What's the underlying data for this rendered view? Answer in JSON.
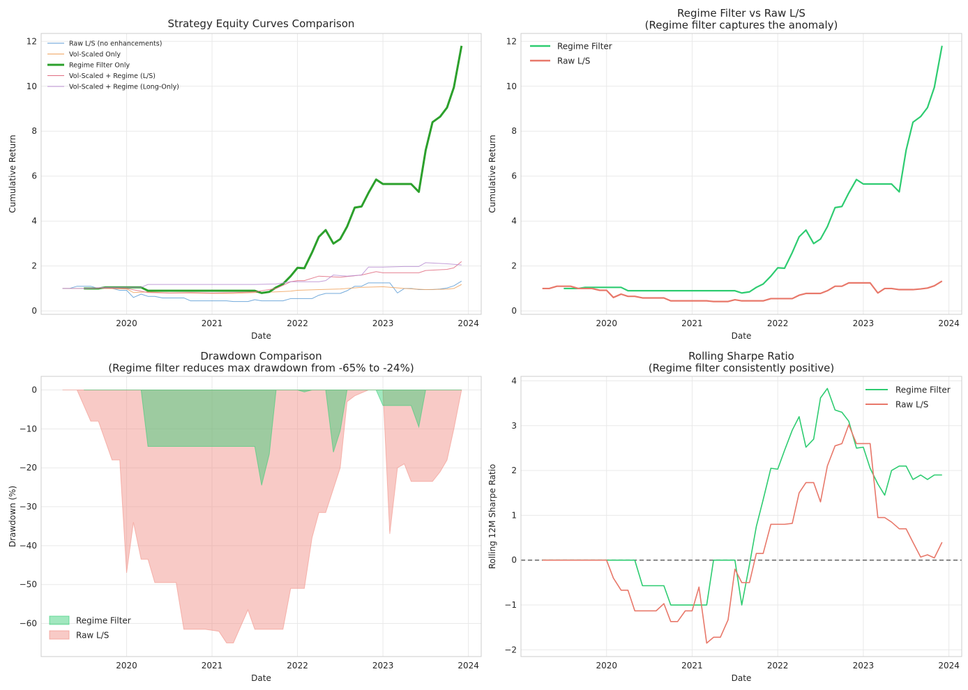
{
  "chart_data": [
    {
      "type": "line",
      "title": "Strategy Equity Curves Comparison",
      "xlabel": "Date",
      "ylabel": "Cumulative Return",
      "xlim": [
        2019.0,
        2024.15
      ],
      "ylim": [
        -0.15,
        12.35
      ],
      "xticks": [
        2020,
        2021,
        2022,
        2023,
        2024
      ],
      "yticks": [
        0,
        2,
        4,
        6,
        8,
        10,
        12
      ],
      "grid": true,
      "legend": "top-left",
      "series": [
        {
          "name": "Raw L/S (no enhancements)",
          "color": "#5b9bd5",
          "width": 1,
          "x": [
            2019.25,
            2019.33,
            2019.42,
            2019.5,
            2019.58,
            2019.67,
            2019.75,
            2019.83,
            2019.92,
            2020.0,
            2020.08,
            2020.17,
            2020.25,
            2020.33,
            2020.42,
            2020.5,
            2020.58,
            2020.67,
            2020.75,
            2020.83,
            2020.92,
            2021.0,
            2021.08,
            2021.17,
            2021.25,
            2021.33,
            2021.42,
            2021.5,
            2021.58,
            2021.67,
            2021.75,
            2021.83,
            2021.92,
            2022.0,
            2022.08,
            2022.17,
            2022.25,
            2022.33,
            2022.42,
            2022.5,
            2022.58,
            2022.67,
            2022.75,
            2022.83,
            2022.92,
            2023.0,
            2023.08,
            2023.17,
            2023.25,
            2023.33,
            2023.42,
            2023.5,
            2023.58,
            2023.67,
            2023.75,
            2023.83,
            2023.92
          ],
          "y": [
            1.0,
            1.0,
            1.1,
            1.1,
            1.1,
            1.0,
            1.0,
            1.0,
            0.92,
            0.92,
            0.6,
            0.75,
            0.65,
            0.65,
            0.58,
            0.58,
            0.58,
            0.58,
            0.45,
            0.45,
            0.45,
            0.45,
            0.45,
            0.45,
            0.42,
            0.42,
            0.42,
            0.5,
            0.45,
            0.45,
            0.45,
            0.45,
            0.55,
            0.55,
            0.55,
            0.55,
            0.7,
            0.78,
            0.78,
            0.78,
            0.9,
            1.1,
            1.1,
            1.25,
            1.25,
            1.25,
            1.25,
            0.8,
            1.0,
            1.0,
            0.95,
            0.95,
            0.95,
            0.98,
            1.02,
            1.12,
            1.33
          ]
        },
        {
          "name": "Vol-Scaled Only",
          "color": "#f0a35e",
          "width": 1,
          "x": [
            2019.25,
            2019.5,
            2019.75,
            2020.0,
            2020.08,
            2020.25,
            2020.5,
            2020.75,
            2021.0,
            2021.25,
            2021.5,
            2021.75,
            2021.92,
            2022.0,
            2022.25,
            2022.5,
            2022.75,
            2023.0,
            2023.25,
            2023.5,
            2023.75,
            2023.83,
            2023.92
          ],
          "y": [
            1.0,
            1.0,
            1.0,
            0.98,
            0.82,
            0.85,
            0.8,
            0.8,
            0.78,
            0.78,
            0.82,
            0.85,
            0.88,
            0.92,
            0.95,
            0.98,
            1.05,
            1.08,
            1.0,
            0.95,
            0.97,
            1.0,
            1.18
          ]
        },
        {
          "name": "Regime Filter Only",
          "color": "#2ca02c",
          "width": 3,
          "x": [
            2019.5,
            2019.58,
            2019.67,
            2019.75,
            2019.83,
            2019.92,
            2020.0,
            2020.08,
            2020.17,
            2020.25,
            2020.33,
            2020.42,
            2020.5,
            2020.58,
            2020.67,
            2020.75,
            2020.83,
            2020.92,
            2021.0,
            2021.08,
            2021.17,
            2021.25,
            2021.33,
            2021.42,
            2021.5,
            2021.58,
            2021.67,
            2021.75,
            2021.83,
            2021.92,
            2022.0,
            2022.08,
            2022.17,
            2022.25,
            2022.33,
            2022.42,
            2022.5,
            2022.58,
            2022.67,
            2022.75,
            2022.83,
            2022.92,
            2023.0,
            2023.08,
            2023.17,
            2023.25,
            2023.33,
            2023.42,
            2023.5,
            2023.58,
            2023.67,
            2023.75,
            2023.83,
            2023.92
          ],
          "y": [
            1.0,
            1.0,
            1.0,
            1.05,
            1.05,
            1.05,
            1.05,
            1.05,
            1.05,
            0.9,
            0.9,
            0.9,
            0.9,
            0.9,
            0.9,
            0.9,
            0.9,
            0.9,
            0.9,
            0.9,
            0.9,
            0.9,
            0.9,
            0.9,
            0.9,
            0.8,
            0.85,
            1.05,
            1.2,
            1.55,
            1.92,
            1.9,
            2.6,
            3.3,
            3.6,
            3.0,
            3.2,
            3.75,
            4.6,
            4.65,
            5.25,
            5.85,
            5.65,
            5.65,
            5.65,
            5.65,
            5.65,
            5.3,
            7.15,
            8.4,
            8.65,
            9.05,
            9.95,
            11.8
          ]
        },
        {
          "name": "Vol-Scaled + Regime (L/S)",
          "color": "#e06c80",
          "width": 1,
          "x": [
            2019.5,
            2019.75,
            2020.0,
            2020.25,
            2020.5,
            2020.75,
            2021.0,
            2021.25,
            2021.5,
            2021.75,
            2021.92,
            2022.0,
            2022.08,
            2022.25,
            2022.5,
            2022.75,
            2022.92,
            2023.0,
            2023.25,
            2023.42,
            2023.5,
            2023.75,
            2023.83,
            2023.92
          ],
          "y": [
            1.0,
            1.02,
            1.0,
            0.82,
            0.8,
            0.82,
            0.8,
            0.82,
            0.85,
            1.0,
            1.3,
            1.35,
            1.35,
            1.55,
            1.5,
            1.6,
            1.75,
            1.7,
            1.7,
            1.7,
            1.8,
            1.85,
            1.92,
            2.2
          ]
        },
        {
          "name": "Vol-Scaled + Regime (Long-Only)",
          "color": "#b98ed2",
          "width": 1,
          "x": [
            2019.25,
            2019.5,
            2019.75,
            2020.0,
            2020.17,
            2020.25,
            2020.5,
            2020.75,
            2021.0,
            2021.25,
            2021.5,
            2021.75,
            2021.92,
            2022.0,
            2022.25,
            2022.33,
            2022.42,
            2022.58,
            2022.75,
            2022.83,
            2023.0,
            2023.25,
            2023.42,
            2023.5,
            2023.75,
            2023.92
          ],
          "y": [
            1.0,
            1.0,
            1.05,
            1.05,
            1.05,
            1.18,
            1.18,
            1.18,
            1.18,
            1.18,
            1.18,
            1.2,
            1.3,
            1.3,
            1.3,
            1.35,
            1.6,
            1.55,
            1.6,
            1.95,
            1.95,
            1.98,
            1.98,
            2.15,
            2.1,
            2.05
          ]
        }
      ]
    },
    {
      "type": "line",
      "title": "Regime Filter vs Raw L/S",
      "subtitle": "(Regime filter captures the anomaly)",
      "xlabel": "Date",
      "ylabel": "Cumulative Return",
      "xlim": [
        2019.0,
        2024.15
      ],
      "ylim": [
        -0.15,
        12.35
      ],
      "xticks": [
        2020,
        2021,
        2022,
        2023,
        2024
      ],
      "yticks": [
        0,
        2,
        4,
        6,
        8,
        10,
        12
      ],
      "grid": true,
      "legend": "top-left",
      "series": [
        {
          "name": "Regime Filter",
          "color": "#2ecc71",
          "width": 2.2,
          "ref": "regime"
        },
        {
          "name": "Raw L/S",
          "color": "#e8786a",
          "width": 2.2,
          "ref": "raw"
        }
      ]
    },
    {
      "type": "area",
      "title": "Drawdown Comparison",
      "subtitle": "(Regime filter reduces max drawdown from -65% to -24%)",
      "xlabel": "Date",
      "ylabel": "Drawdown (%)",
      "xlim": [
        2019.0,
        2024.15
      ],
      "ylim": [
        -68.5,
        3.5
      ],
      "xticks": [
        2020,
        2021,
        2022,
        2023,
        2024
      ],
      "yticks": [
        0,
        -10,
        -20,
        -30,
        -40,
        -50,
        -60
      ],
      "grid": true,
      "legend": "bottom-left",
      "series": [
        {
          "name": "Regime Filter",
          "color": "#2ecc71",
          "x": [
            2019.5,
            2020.17,
            2020.25,
            2021.5,
            2021.58,
            2021.67,
            2021.75,
            2021.92,
            2022.0,
            2022.08,
            2022.17,
            2022.33,
            2022.42,
            2022.5,
            2022.58,
            2022.92,
            2023.0,
            2023.08,
            2023.17,
            2023.25,
            2023.33,
            2023.42,
            2023.5,
            2023.92
          ],
          "y": [
            0,
            0,
            -14.5,
            -14.5,
            -24.5,
            -16.5,
            0,
            0,
            0,
            -0.5,
            0,
            0,
            -16,
            -10.5,
            0,
            0,
            -4,
            -4,
            -4,
            -4,
            -4,
            -9.5,
            0,
            0
          ]
        },
        {
          "name": "Raw L/S",
          "color": "#f08a80",
          "x": [
            2019.25,
            2019.42,
            2019.58,
            2019.67,
            2019.83,
            2019.92,
            2020.0,
            2020.08,
            2020.17,
            2020.25,
            2020.33,
            2020.42,
            2020.58,
            2020.67,
            2020.75,
            2020.92,
            2021.08,
            2021.17,
            2021.25,
            2021.42,
            2021.5,
            2021.58,
            2021.67,
            2021.83,
            2021.92,
            2022.0,
            2022.08,
            2022.17,
            2022.25,
            2022.33,
            2022.5,
            2022.58,
            2022.67,
            2022.83,
            2022.92,
            2023.0,
            2023.08,
            2023.17,
            2023.25,
            2023.33,
            2023.42,
            2023.58,
            2023.67,
            2023.75,
            2023.83,
            2023.92
          ],
          "y": [
            0,
            0,
            -8,
            -8,
            -18,
            -18,
            -47,
            -34,
            -43.5,
            -43.5,
            -49.5,
            -49.5,
            -49.5,
            -61.5,
            -61.5,
            -61.5,
            -62,
            -65,
            -65,
            -56.5,
            -61.5,
            -61.5,
            -61.5,
            -61.5,
            -51,
            -51,
            -51,
            -38,
            -31.5,
            -31.5,
            -20,
            -3,
            -1.5,
            0,
            0,
            0,
            -37,
            -20,
            -19,
            -23.5,
            -23.5,
            -23.5,
            -21,
            -18,
            -10,
            0
          ]
        }
      ]
    },
    {
      "type": "line",
      "title": "Rolling Sharpe Ratio",
      "subtitle": "(Regime filter consistently positive)",
      "xlabel": "Date",
      "ylabel": "Rolling 12M Sharpe Ratio",
      "xlim": [
        2019.0,
        2024.15
      ],
      "ylim": [
        -2.15,
        4.1
      ],
      "xticks": [
        2020,
        2021,
        2022,
        2023,
        2024
      ],
      "yticks": [
        -2,
        -1,
        0,
        1,
        2,
        3,
        4
      ],
      "grid": true,
      "legend": "top-right",
      "zero_line": 0,
      "series": [
        {
          "name": "Regime Filter",
          "color": "#2ecc71",
          "width": 1.6,
          "x": [
            2019.25,
            2020.33,
            2020.42,
            2020.58,
            2020.67,
            2020.75,
            2020.83,
            2020.92,
            2021.0,
            2021.08,
            2021.17,
            2021.25,
            2021.33,
            2021.42,
            2021.5,
            2021.58,
            2021.67,
            2021.75,
            2021.83,
            2021.92,
            2022.0,
            2022.08,
            2022.17,
            2022.25,
            2022.33,
            2022.42,
            2022.5,
            2022.58,
            2022.67,
            2022.75,
            2022.83,
            2022.92,
            2023.0,
            2023.08,
            2023.17,
            2023.25,
            2023.33,
            2023.42,
            2023.5,
            2023.58,
            2023.67,
            2023.75,
            2023.83,
            2023.92
          ],
          "y": [
            0,
            0,
            -0.57,
            -0.57,
            -0.57,
            -1.0,
            -1.0,
            -1.0,
            -1.0,
            -1.0,
            -1.0,
            0,
            0,
            0,
            0,
            -1.0,
            -0.1,
            0.75,
            1.35,
            2.05,
            2.03,
            2.45,
            2.9,
            3.2,
            2.52,
            2.7,
            3.62,
            3.83,
            3.35,
            3.3,
            3.1,
            2.5,
            2.52,
            2.05,
            1.7,
            1.45,
            2.0,
            2.1,
            2.1,
            1.8,
            1.9,
            1.8,
            1.9,
            1.9
          ]
        },
        {
          "name": "Raw L/S",
          "color": "#e8786a",
          "width": 1.6,
          "x": [
            2019.25,
            2020.0,
            2020.08,
            2020.17,
            2020.25,
            2020.33,
            2020.42,
            2020.58,
            2020.67,
            2020.75,
            2020.83,
            2020.92,
            2021.0,
            2021.08,
            2021.17,
            2021.25,
            2021.33,
            2021.42,
            2021.5,
            2021.58,
            2021.67,
            2021.75,
            2021.83,
            2021.92,
            2022.0,
            2022.08,
            2022.17,
            2022.25,
            2022.33,
            2022.42,
            2022.5,
            2022.58,
            2022.67,
            2022.75,
            2022.83,
            2022.92,
            2023.0,
            2023.08,
            2023.17,
            2023.25,
            2023.33,
            2023.42,
            2023.5,
            2023.58,
            2023.67,
            2023.75,
            2023.83,
            2023.92
          ],
          "y": [
            0,
            0,
            -0.4,
            -0.67,
            -0.67,
            -1.13,
            -1.13,
            -1.13,
            -0.97,
            -1.37,
            -1.37,
            -1.13,
            -1.13,
            -0.6,
            -1.85,
            -1.72,
            -1.72,
            -1.33,
            -0.2,
            -0.5,
            -0.5,
            0.15,
            0.15,
            0.8,
            0.8,
            0.8,
            0.82,
            1.5,
            1.73,
            1.73,
            1.3,
            2.1,
            2.55,
            2.6,
            3.02,
            2.6,
            2.6,
            2.6,
            0.95,
            0.95,
            0.85,
            0.7,
            0.7,
            0.4,
            0.07,
            0.12,
            0.05,
            0.4
          ]
        }
      ]
    }
  ]
}
